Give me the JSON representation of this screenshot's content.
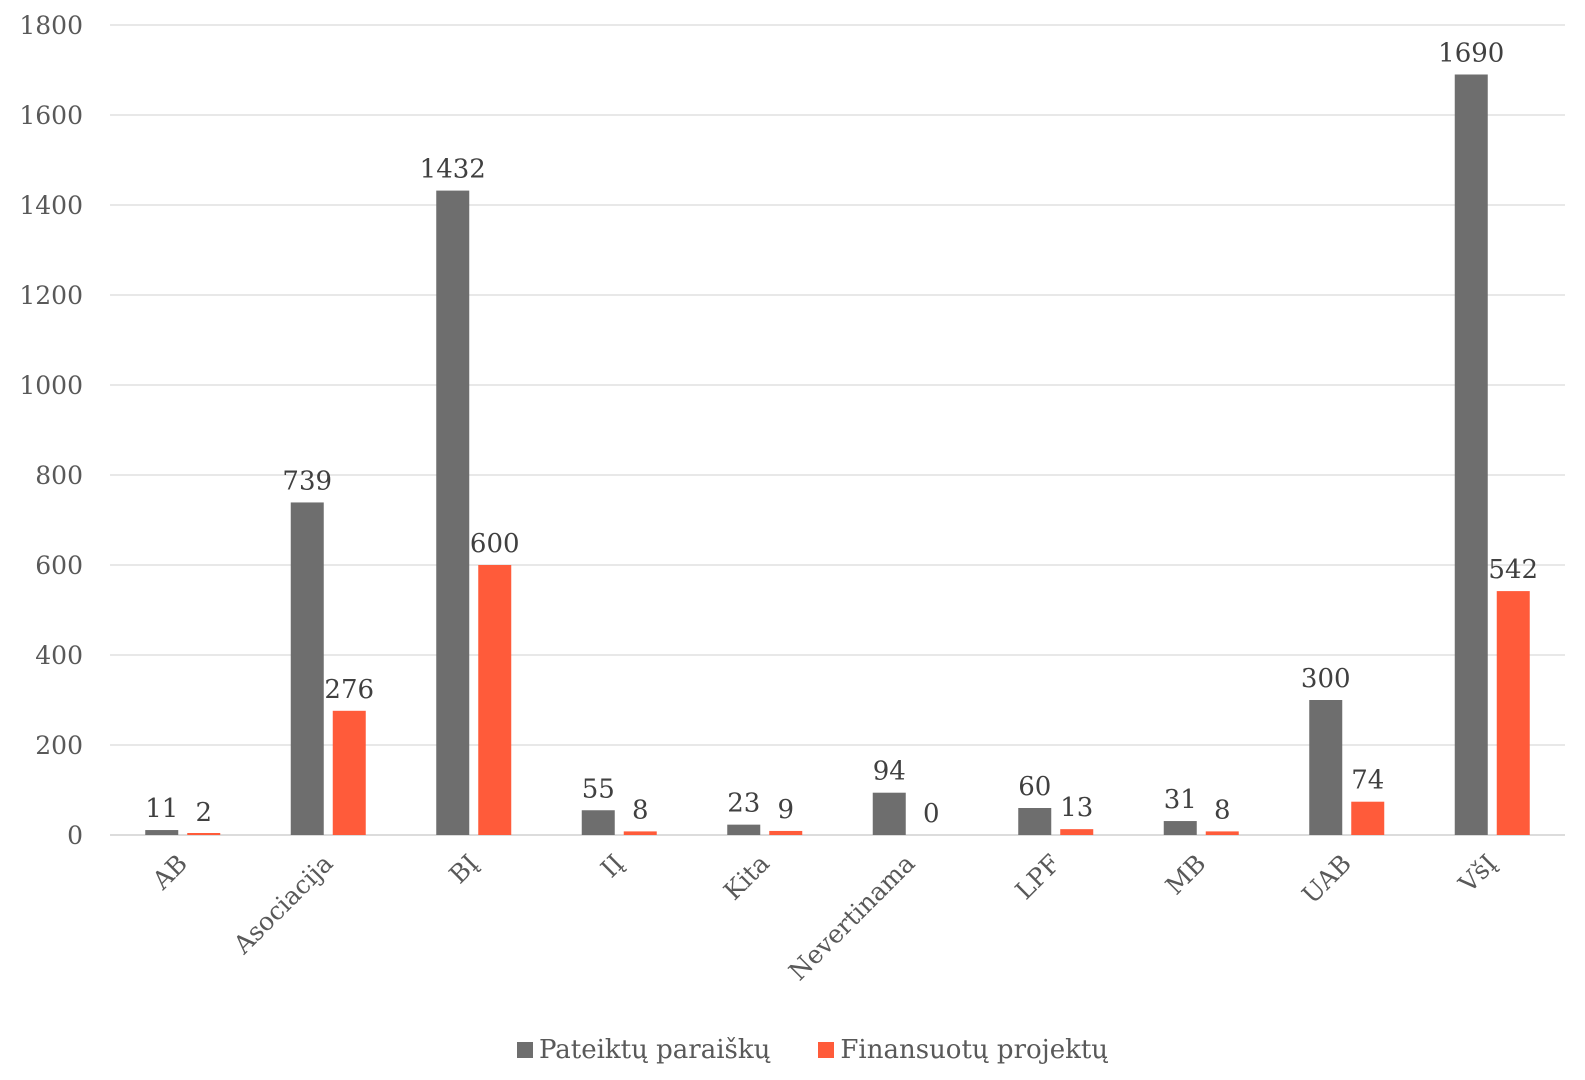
{
  "chart_data": {
    "type": "bar",
    "title": "",
    "xlabel": "",
    "ylabel": "",
    "ylim": [
      0,
      1800
    ],
    "yticks": [
      0,
      200,
      400,
      600,
      800,
      1000,
      1200,
      1400,
      1600,
      1800
    ],
    "grid": true,
    "legend_position": "bottom",
    "categories": [
      "AB",
      "Asociacija",
      "BĮ",
      "IĮ",
      "Kita",
      "Nevertinama",
      "LPF",
      "MB",
      "UAB",
      "VšĮ"
    ],
    "series": [
      {
        "name": "Pateiktų paraiškų",
        "color": "#6e6e6e",
        "values": [
          11,
          739,
          1432,
          55,
          23,
          94,
          60,
          31,
          300,
          1690
        ]
      },
      {
        "name": "Finansuotų projektų",
        "color": "#ff5b3a",
        "values": [
          2,
          276,
          600,
          8,
          9,
          0,
          13,
          8,
          74,
          542
        ]
      }
    ]
  }
}
